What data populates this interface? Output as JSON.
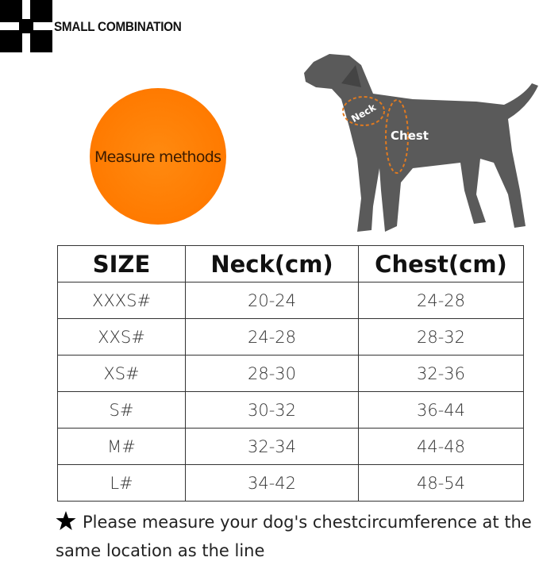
{
  "header": {
    "brand": "SMALL COMBINATION"
  },
  "badge": {
    "label": "Measure methods"
  },
  "illustration": {
    "neck_label": "Neck",
    "chest_label": "Chest"
  },
  "table": {
    "columns": [
      "SIZE",
      "Neck(cm)",
      "Chest(cm)"
    ],
    "rows": [
      [
        "XXXS#",
        "20-24",
        "24-28"
      ],
      [
        "XXS#",
        "24-28",
        "28-32"
      ],
      [
        "XS#",
        "28-30",
        "32-36"
      ],
      [
        "S#",
        "30-32",
        "36-44"
      ],
      [
        "M#",
        "32-34",
        "44-48"
      ],
      [
        "L#",
        "34-42",
        "48-54"
      ]
    ]
  },
  "note": {
    "text": "Please measure your dog's chestcircumference at the same location as the line"
  }
}
